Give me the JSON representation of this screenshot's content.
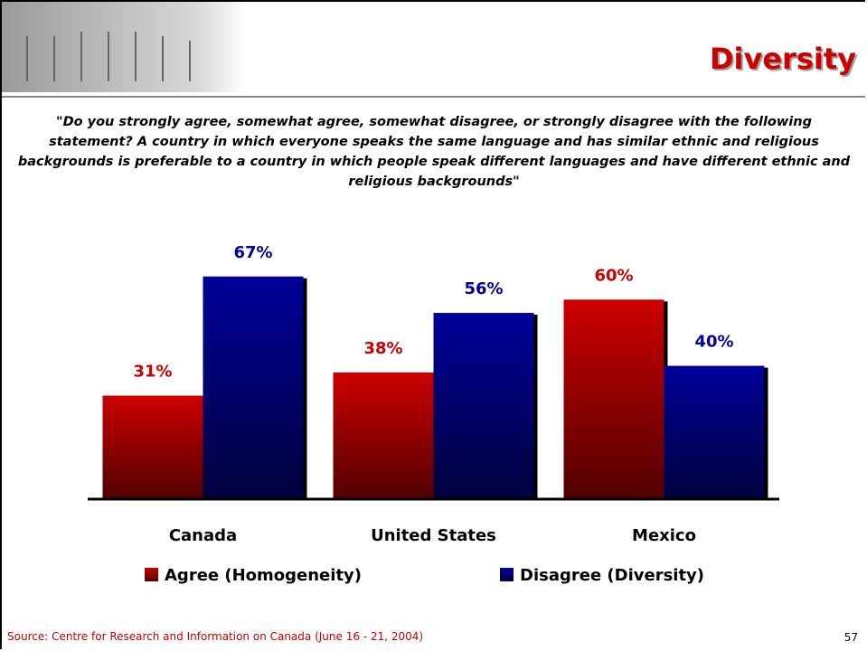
{
  "title": "Diversity",
  "question": "\"Do you strongly agree, somewhat agree, somewhat disagree, or strongly disagree with the following statement? A country in which everyone speaks the same language and has similar ethnic and religious backgrounds is preferable to a country in which people speak different languages and have different ethnic and religious backgrounds\"",
  "chart_data": {
    "type": "bar",
    "categories": [
      "Canada",
      "United States",
      "Mexico"
    ],
    "series": [
      {
        "name": "Agree (Homogeneity)",
        "color": "#cc0000",
        "values": [
          31,
          38,
          60
        ],
        "value_labels": [
          "31%",
          "38%",
          "60%"
        ]
      },
      {
        "name": "Disagree (Diversity)",
        "color": "#000099",
        "values": [
          67,
          56,
          40
        ],
        "value_labels": [
          "67%",
          "56%",
          "40%"
        ]
      }
    ],
    "ylim": [
      0,
      100
    ]
  },
  "source": "Source: Centre for Research and Information on Canada (June 16 - 21, 2004)",
  "page_number": "57"
}
